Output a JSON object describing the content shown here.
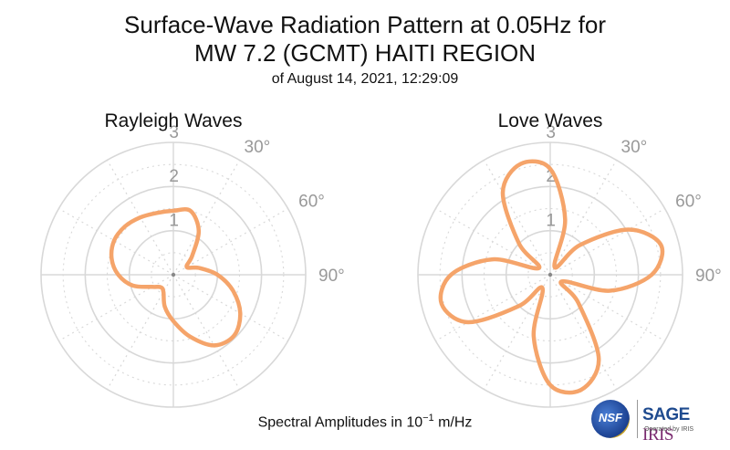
{
  "title": {
    "line1": "Surface-Wave Radiation Pattern at 0.05Hz for",
    "line2": "MW 7.2 (GCMT) HAITI REGION",
    "line3": "of August 14, 2021, 12:29:09"
  },
  "footer": {
    "prefix": "Spectral Amplitudes in ",
    "base": "10",
    "exponent": "−1",
    "unit": " m/Hz"
  },
  "logos": {
    "nsf": "NSF",
    "sage": "SAGE",
    "iris": "IRIS",
    "operated_by": "Operated by IRIS"
  },
  "colors": {
    "pattern": "#f5a46a",
    "grid": "#d8d8d8",
    "angle_label": "#999999"
  },
  "chart_data": [
    {
      "type": "polar-line",
      "title": "Rayleigh Waves",
      "radial_range": [
        0,
        3
      ],
      "radial_ticks": [
        1,
        2,
        3
      ],
      "angle_tick_labels": [
        "30°",
        "60°",
        "90°"
      ],
      "angle_zero": "north",
      "angle_direction": "clockwise",
      "series": [
        {
          "color": "#f5a46a",
          "theta_deg": [
            0,
            15,
            30,
            45,
            60,
            75,
            90,
            105,
            120,
            135,
            150,
            165,
            180,
            195,
            210,
            225,
            240,
            255,
            270,
            285,
            300,
            315,
            330,
            345
          ],
          "r": [
            1.45,
            1.5,
            1.15,
            0.6,
            0.35,
            0.6,
            1.0,
            1.4,
            1.75,
            1.95,
            1.85,
            1.45,
            1.05,
            0.75,
            0.45,
            0.4,
            0.55,
            0.95,
            1.25,
            1.45,
            1.55,
            1.55,
            1.5,
            1.45
          ]
        }
      ]
    },
    {
      "type": "polar-line",
      "title": "Love Waves",
      "radial_range": [
        0,
        3
      ],
      "radial_ticks": [
        1,
        2,
        3
      ],
      "angle_tick_labels": [
        "30°",
        "60°",
        "90°"
      ],
      "angle_zero": "north",
      "angle_direction": "clockwise",
      "series": [
        {
          "color": "#f5a46a",
          "theta_deg": [
            0,
            15,
            30,
            45,
            60,
            75,
            90,
            105,
            120,
            135,
            150,
            165,
            180,
            195,
            210,
            225,
            240,
            255,
            270,
            285,
            300,
            315,
            330,
            345
          ],
          "r": [
            2.4,
            1.3,
            0.2,
            0.95,
            2.05,
            2.6,
            2.3,
            1.4,
            0.3,
            0.9,
            2.2,
            2.7,
            2.5,
            1.45,
            0.35,
            1.0,
            2.15,
            2.55,
            2.25,
            1.35,
            0.3,
            1.0,
            2.15,
            2.6
          ]
        }
      ]
    }
  ]
}
